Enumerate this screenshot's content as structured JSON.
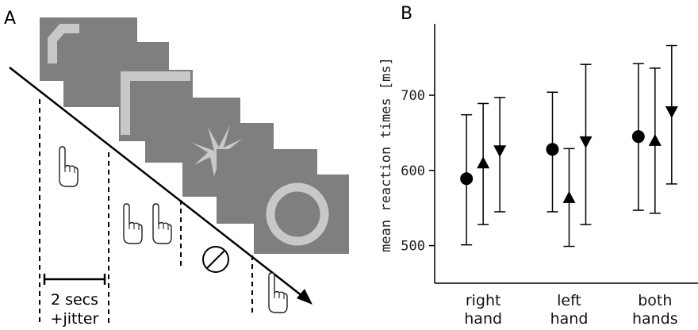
{
  "panel_a": {
    "label": "A",
    "duration_label": "2 secs",
    "jitter_label": "+jitter"
  },
  "chart_data": {
    "type": "errorbar",
    "panel_label": "B",
    "y_label": "mean reaction times [ms]",
    "categories": [
      "right hand",
      "left hand",
      "both hands"
    ],
    "series": [
      {
        "marker": "circle",
        "color": "#000000",
        "values": [
          589,
          628,
          645
        ],
        "lower": [
          501,
          545,
          547
        ],
        "upper": [
          674,
          704,
          742
        ]
      },
      {
        "marker": "triangle-up",
        "color": "#000000",
        "values": [
          609,
          563,
          639
        ],
        "lower": [
          528,
          499,
          543
        ],
        "upper": [
          689,
          629,
          736
        ]
      },
      {
        "marker": "triangle-down",
        "color": "#000000",
        "values": [
          627,
          639,
          679
        ],
        "lower": [
          545,
          528,
          582
        ],
        "upper": [
          697,
          741,
          766
        ]
      }
    ],
    "ylim": [
      450,
      795
    ],
    "yticks": [
      500,
      600,
      700
    ],
    "grid": false
  }
}
